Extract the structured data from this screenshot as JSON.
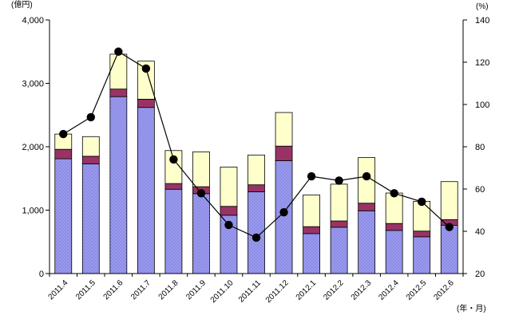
{
  "chart_data": {
    "type": "bar",
    "stacked": true,
    "secondary_type": "line",
    "categories": [
      "2011.4",
      "2011.5",
      "2011.6",
      "2011.7",
      "2011.8",
      "2011.9",
      "2011.10",
      "2011.11",
      "2011.12",
      "2012.1",
      "2012.2",
      "2012.3",
      "2012.4",
      "2012.5",
      "2012.6"
    ],
    "series": [
      {
        "values": [
          1810,
          1730,
          2790,
          2620,
          1330,
          1260,
          920,
          1290,
          1780,
          630,
          730,
          990,
          680,
          580,
          760
        ],
        "color": "#9999ee"
      },
      {
        "values": [
          150,
          120,
          120,
          130,
          90,
          110,
          140,
          110,
          230,
          110,
          100,
          120,
          110,
          90,
          90
        ],
        "color": "#993366"
      },
      {
        "values": [
          240,
          310,
          550,
          600,
          520,
          550,
          620,
          470,
          530,
          500,
          580,
          720,
          480,
          470,
          600
        ],
        "color": "#ffffcc"
      }
    ],
    "line_series": {
      "values": [
        86,
        94,
        125,
        117,
        74,
        58,
        43,
        37,
        49,
        66,
        64,
        66,
        58,
        54,
        42
      ],
      "color": "#000000",
      "axis": "right"
    },
    "y_left": {
      "min": 0,
      "max": 4000,
      "ticks": [
        "0",
        "1,000",
        "2,000",
        "3,000",
        "4,000"
      ],
      "label": "(億円)"
    },
    "y_right": {
      "min": 20,
      "max": 140,
      "ticks": [
        "20",
        "40",
        "60",
        "80",
        "100",
        "120",
        "140"
      ],
      "label": "(%)"
    },
    "x_unit_label": "(年・月)",
    "grid": false,
    "legend": "none"
  }
}
